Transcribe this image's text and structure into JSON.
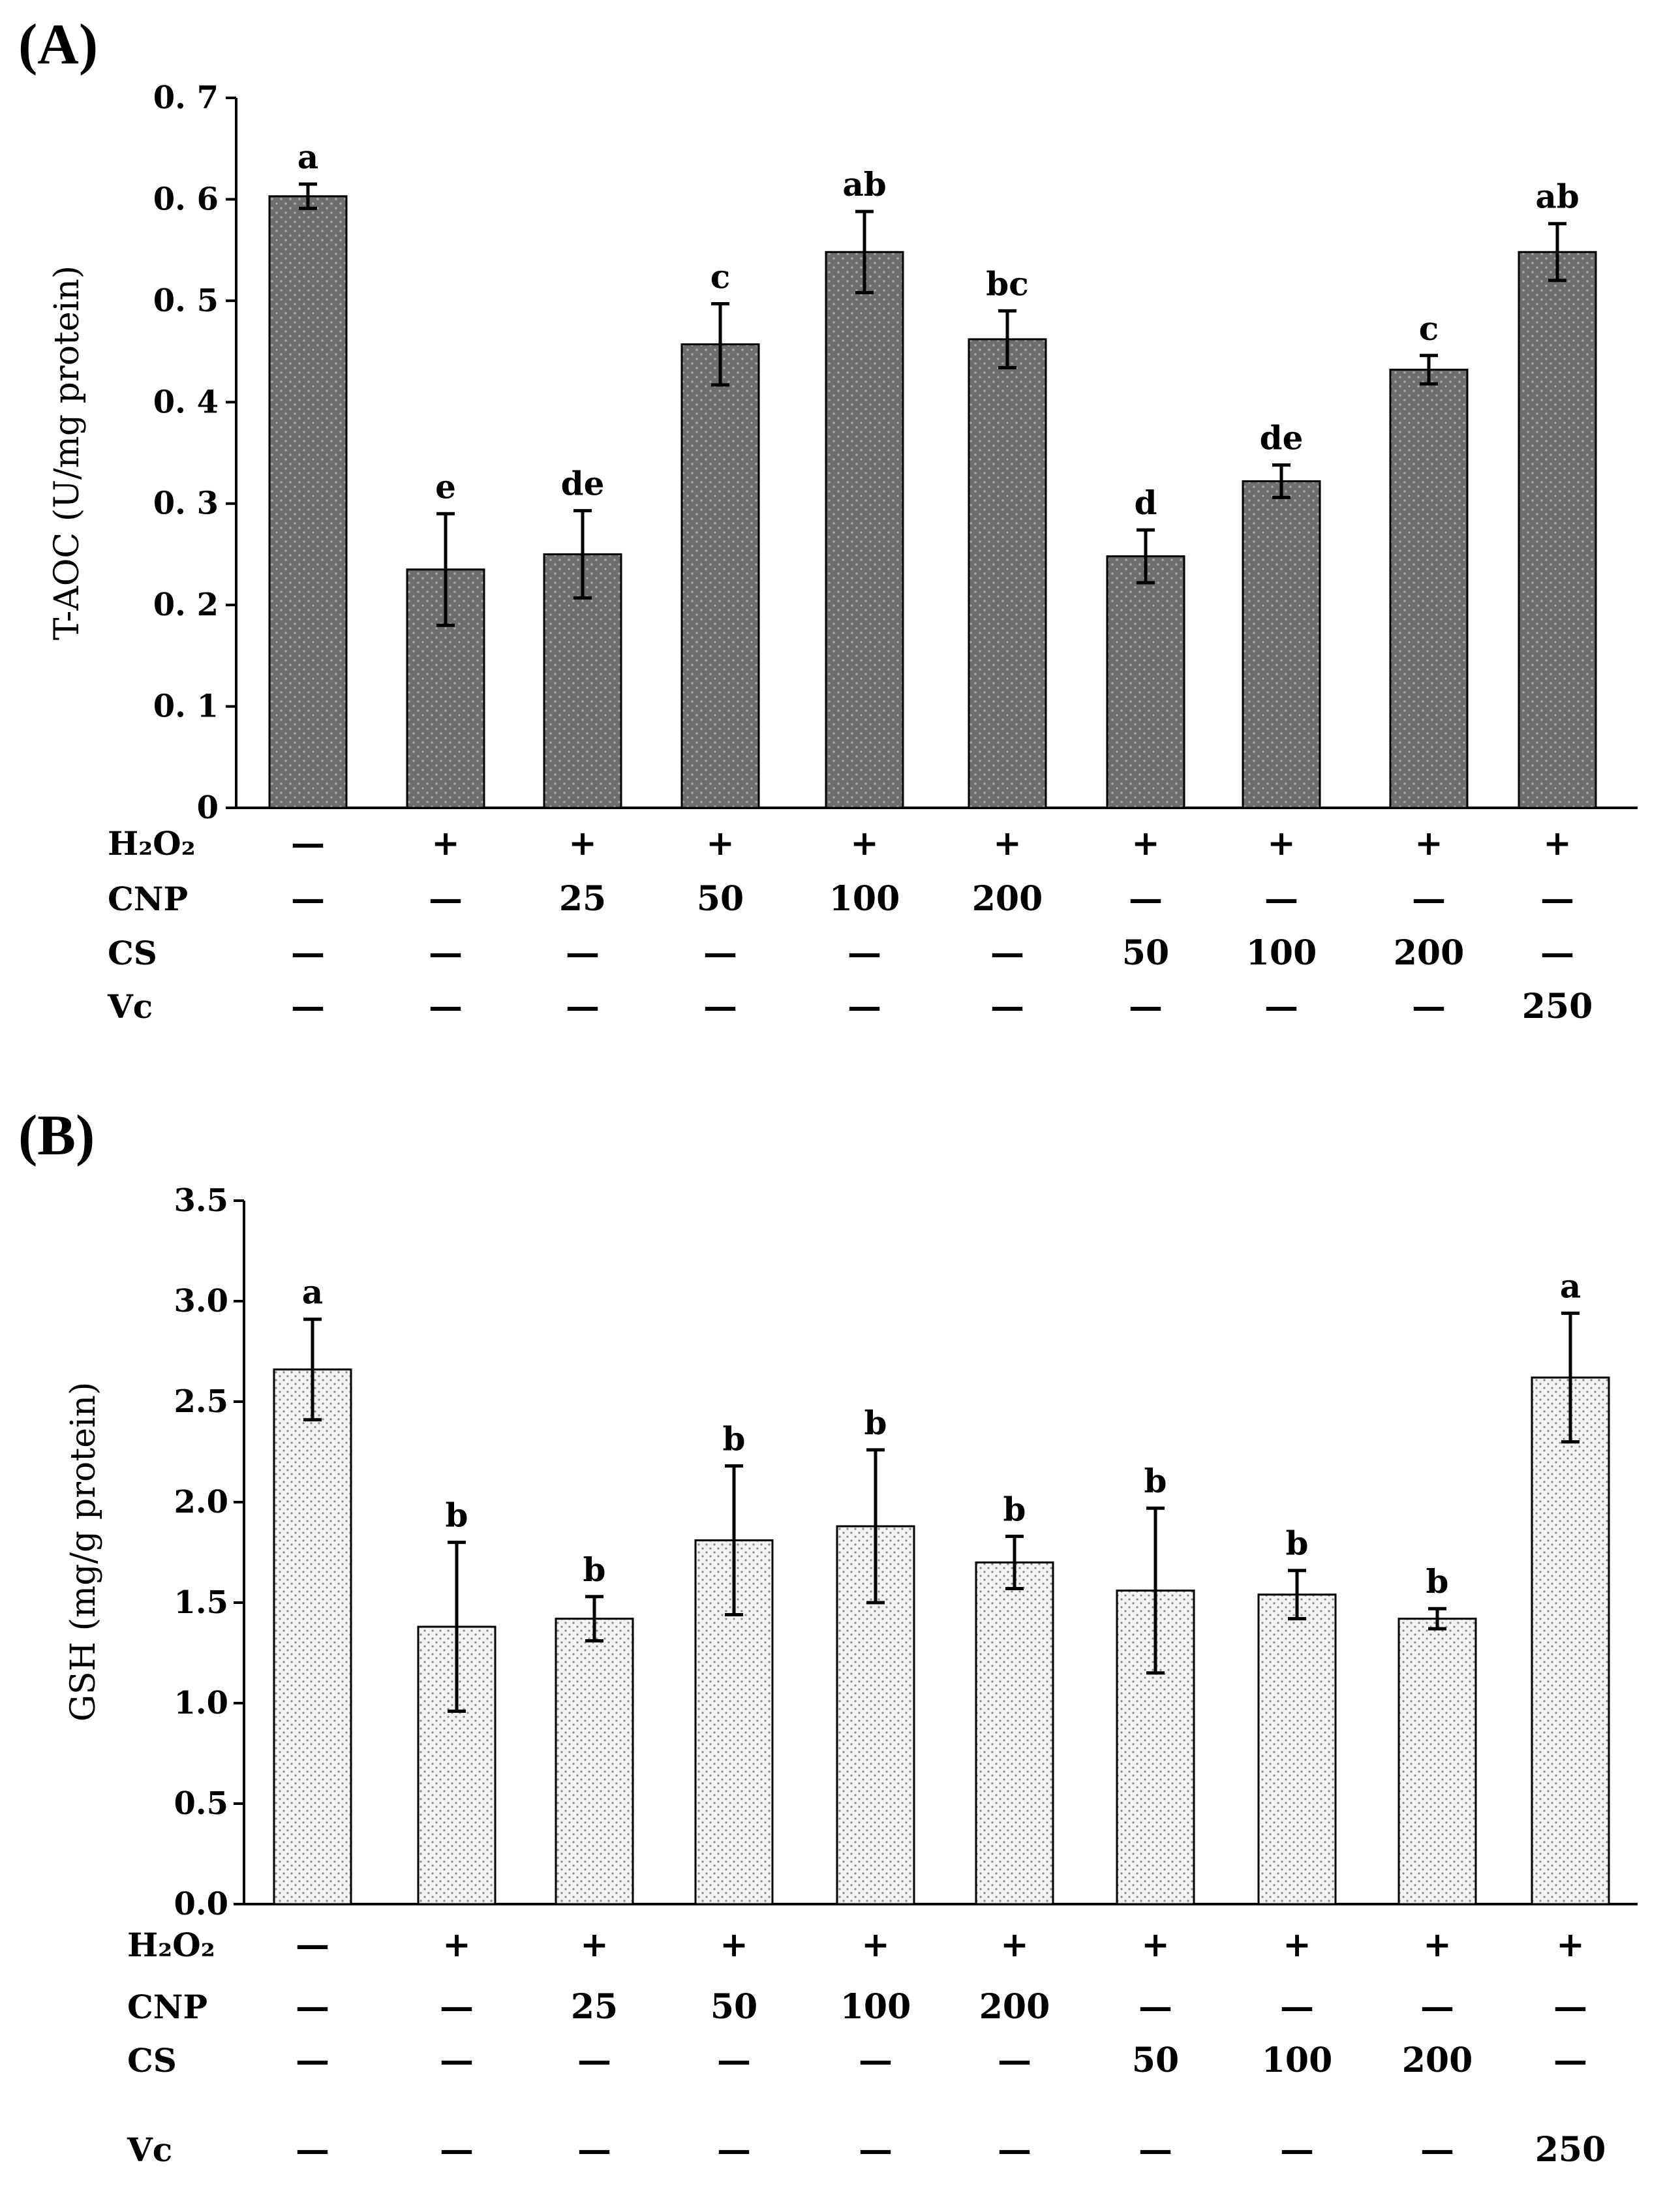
{
  "chart_data": [
    {
      "panel": "(A)",
      "type": "bar",
      "ylabel": "T-AOC (U/mg protein)",
      "ylim": [
        0,
        0.7
      ],
      "yticks": [
        "0",
        "0. 1",
        "0. 2",
        "0. 3",
        "0. 4",
        "0. 5",
        "0. 6",
        "0. 7"
      ],
      "fill": "#6e6e6e",
      "values": [
        0.603,
        0.235,
        0.25,
        0.457,
        0.548,
        0.462,
        0.248,
        0.322,
        0.432,
        0.548
      ],
      "errors": [
        0.012,
        0.055,
        0.043,
        0.04,
        0.04,
        0.028,
        0.026,
        0.016,
        0.014,
        0.028
      ],
      "letters": [
        "a",
        "e",
        "de",
        "c",
        "ab",
        "bc",
        "d",
        "de",
        "c",
        "ab"
      ],
      "rows": [
        {
          "label": "H₂O₂",
          "cells": [
            "—",
            "+",
            "+",
            "+",
            "+",
            "+",
            "+",
            "+",
            "+",
            "+"
          ]
        },
        {
          "label": "CNP",
          "cells": [
            "—",
            "—",
            "25",
            "50",
            "100",
            "200",
            "—",
            "—",
            "—",
            "—"
          ]
        },
        {
          "label": "CS",
          "cells": [
            "—",
            "—",
            "—",
            "—",
            "—",
            "—",
            "50",
            "100",
            "200",
            "—"
          ]
        },
        {
          "label": "Vc",
          "cells": [
            "—",
            "—",
            "—",
            "—",
            "—",
            "—",
            "—",
            "—",
            "—",
            "250"
          ]
        }
      ]
    },
    {
      "panel": "(B)",
      "type": "bar",
      "ylabel": "GSH (mg/g protein)",
      "ylim": [
        0,
        3.5
      ],
      "yticks": [
        "0.0",
        "0.5",
        "1.0",
        "1.5",
        "2.0",
        "2.5",
        "3.0",
        "3.5"
      ],
      "fill": "#e6e6e6",
      "values": [
        2.66,
        1.38,
        1.42,
        1.81,
        1.88,
        1.7,
        1.56,
        1.54,
        1.42,
        2.62
      ],
      "errors": [
        0.25,
        0.42,
        0.11,
        0.37,
        0.38,
        0.13,
        0.41,
        0.12,
        0.05,
        0.32
      ],
      "letters": [
        "a",
        "b",
        "b",
        "b",
        "b",
        "b",
        "b",
        "b",
        "b",
        "a"
      ],
      "rows": [
        {
          "label": "H₂O₂",
          "cells": [
            "—",
            "+",
            "+",
            "+",
            "+",
            "+",
            "+",
            "+",
            "+",
            "+"
          ]
        },
        {
          "label": "CNP",
          "cells": [
            "—",
            "—",
            "25",
            "50",
            "100",
            "200",
            "—",
            "—",
            "—",
            "—"
          ]
        },
        {
          "label": "CS",
          "cells": [
            "—",
            "—",
            "—",
            "—",
            "—",
            "—",
            "50",
            "100",
            "200",
            "—"
          ]
        },
        {
          "label": "Vc",
          "cells": [
            "—",
            "—",
            "—",
            "—",
            "—",
            "—",
            "—",
            "—",
            "—",
            "250"
          ]
        }
      ]
    }
  ]
}
